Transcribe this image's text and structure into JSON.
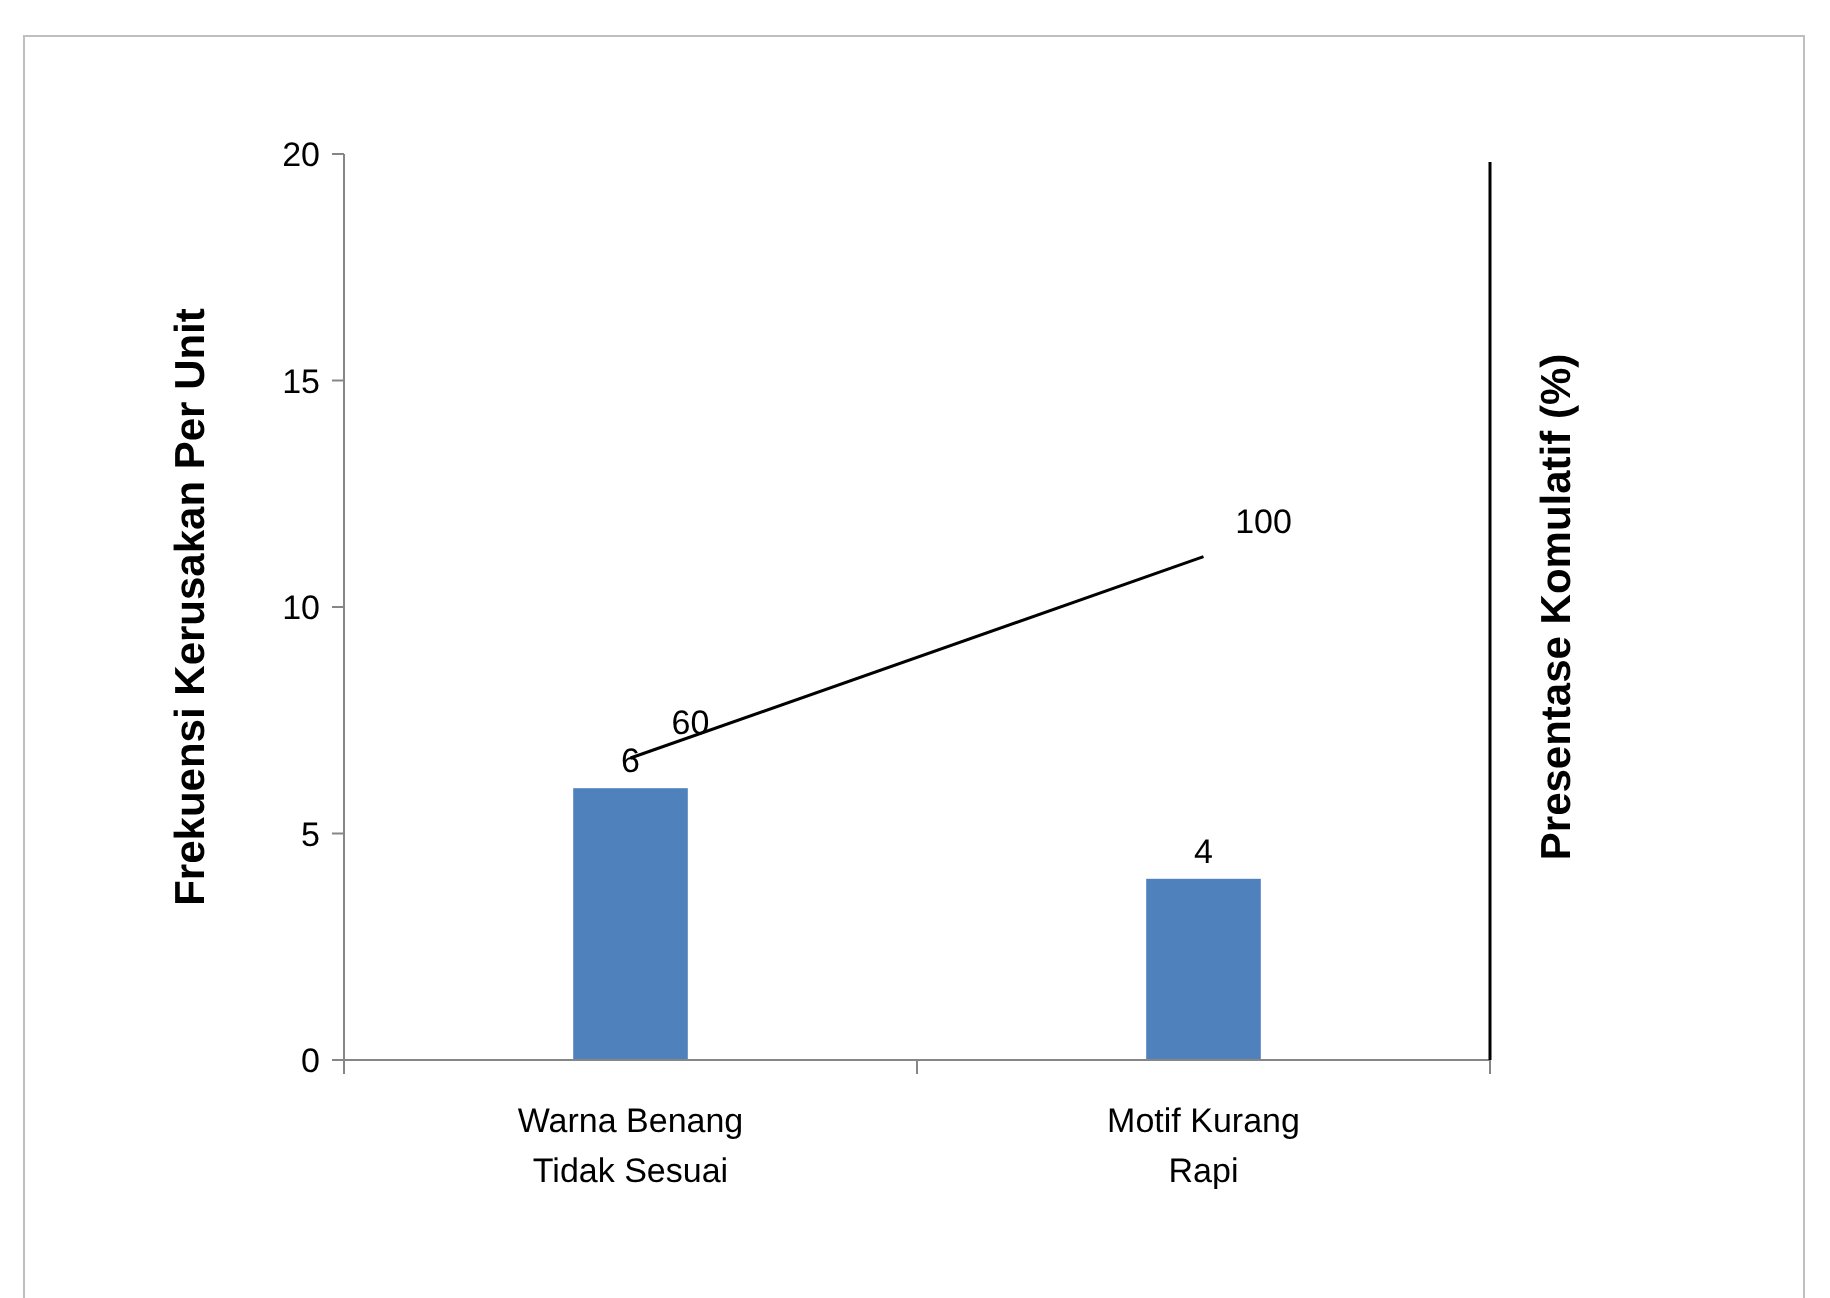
{
  "chart_data": {
    "type": "bar",
    "ylabel": "Frekuensi Kerusakan Per Unit",
    "y2label": "Presentase Komulatif (%)",
    "categories": [
      "Warna Benang Tidak Sesuai",
      "Motif Kurang Rapi"
    ],
    "series": [
      {
        "color": "#4f81bd",
        "values": [
          6,
          4
        ]
      },
      {
        "type": "line",
        "axis": "y2",
        "color": "#000000",
        "values": [
          60,
          100
        ]
      }
    ],
    "ylim": [
      0,
      20
    ],
    "yticks": [
      0,
      5,
      10,
      15,
      20
    ],
    "y2lim": [
      0,
      180
    ],
    "grid": false,
    "data_labels": true,
    "marker": "none"
  }
}
